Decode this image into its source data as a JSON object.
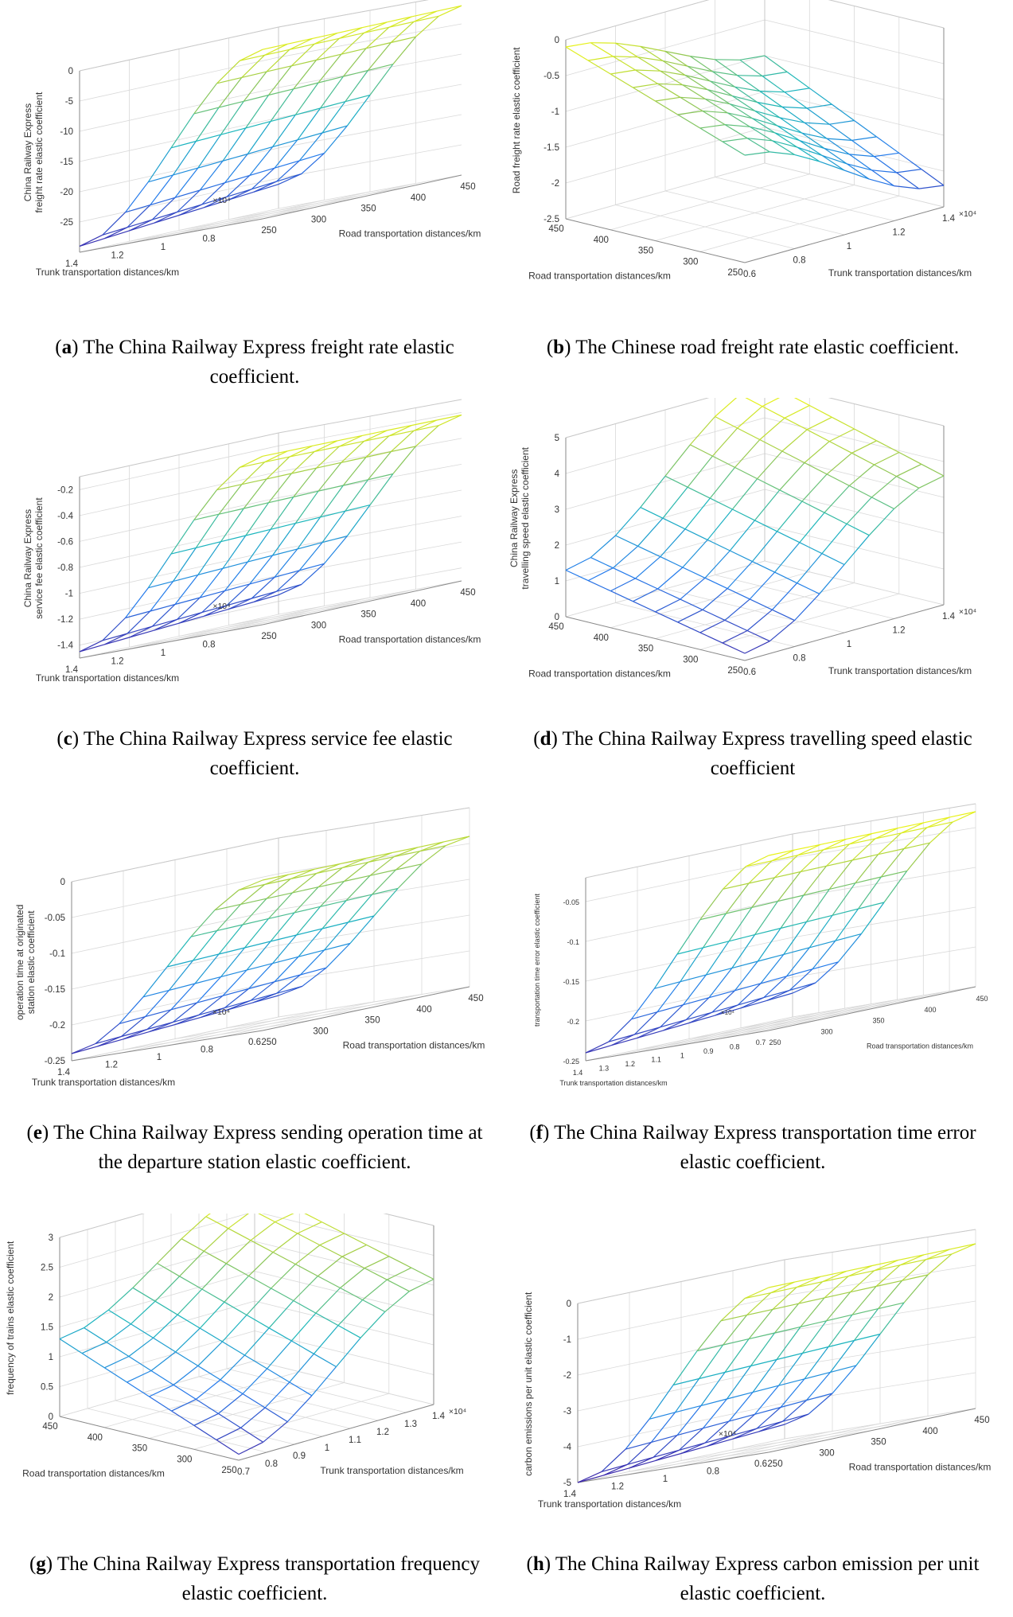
{
  "chart_data": [
    {
      "id": "a",
      "type": "surface",
      "zlabel": [
        "China Railway Express",
        "freight rate elastic coefficient"
      ],
      "xlabel": "Trunk transportation distances/km",
      "x_exponent": "×10⁴",
      "ylabel": "Road transportation distances/km",
      "xticks": [
        "0.8",
        "1",
        "1.2",
        "1.4"
      ],
      "yticks": [
        "250",
        "300",
        "350",
        "400",
        "450"
      ],
      "zticks": [
        "0",
        "-5",
        "-10",
        "-15",
        "-20",
        "-25"
      ],
      "xrange": [
        0.6,
        1.4
      ],
      "yrange": [
        250,
        450
      ],
      "zrange": [
        -30,
        0
      ],
      "z_corners": {
        "x_min_y_min": -2,
        "x_min_y_max": -2,
        "x_max_y_min": -29,
        "x_max_y_max": -26
      },
      "caption_letter": "a",
      "caption_text": "The China Railway Express freight rate elastic coefficient."
    },
    {
      "id": "b",
      "type": "surface",
      "zlabel": [
        "Road freight rate elastic coefficient"
      ],
      "xlabel": "Trunk transportation distances/km",
      "x_exponent": "×10⁴",
      "ylabel": "Road transportation distances/km",
      "xticks": [
        "0.6",
        "0.8",
        "1",
        "1.2",
        "1.4"
      ],
      "yticks": [
        "250",
        "300",
        "350",
        "400",
        "450"
      ],
      "zticks": [
        "0",
        "-0.5",
        "-1",
        "-1.5",
        "-2",
        "-2.5"
      ],
      "xrange": [
        0.6,
        1.4
      ],
      "yrange": [
        250,
        450
      ],
      "zrange": [
        -2.5,
        0
      ],
      "z_corners": {
        "x_min_y_min": -1.0,
        "x_min_y_max": -0.1,
        "x_max_y_min": -2.2,
        "x_max_y_max": -1.0
      },
      "caption_letter": "b",
      "caption_text": "The Chinese road freight rate elastic coefficient."
    },
    {
      "id": "c",
      "type": "surface",
      "zlabel": [
        "China Railway Express",
        "service fee elastic coefficient"
      ],
      "xlabel": "Trunk transportation distances/km",
      "x_exponent": "×10⁴",
      "ylabel": "Road transportation distances/km",
      "xticks": [
        "0.8",
        "1",
        "1.2",
        "1.4"
      ],
      "yticks": [
        "250",
        "300",
        "350",
        "400",
        "450"
      ],
      "zticks": [
        "-0.2",
        "-0.4",
        "-0.6",
        "-0.8",
        "-1",
        "-1.2",
        "-1.4"
      ],
      "xrange": [
        0.6,
        1.4
      ],
      "yrange": [
        250,
        450
      ],
      "zrange": [
        -1.5,
        -0.1
      ],
      "z_corners": {
        "x_min_y_min": -0.2,
        "x_min_y_max": -0.22,
        "x_max_y_min": -1.45,
        "x_max_y_max": -1.35
      },
      "caption_letter": "c",
      "caption_text": "The China Railway Express service fee elastic coefficient."
    },
    {
      "id": "d",
      "type": "surface",
      "zlabel": [
        "China Railway Express",
        "travelling speed elastic coefficient"
      ],
      "xlabel": "Trunk transportation distances/km",
      "x_exponent": "×10⁴",
      "ylabel": "Road transportation distances/km",
      "xticks": [
        "0.6",
        "0.8",
        "1",
        "1.2",
        "1.4"
      ],
      "yticks": [
        "250",
        "300",
        "350",
        "400",
        "450"
      ],
      "zticks": [
        "0",
        "1",
        "2",
        "3",
        "4",
        "5"
      ],
      "xrange": [
        0.6,
        1.4
      ],
      "yrange": [
        250,
        450
      ],
      "zrange": [
        0,
        5
      ],
      "z_corners": {
        "x_min_y_min": 0.2,
        "x_min_y_max": 1.3,
        "x_max_y_min": 3.6,
        "x_max_y_max": 5.0
      },
      "caption_letter": "d",
      "caption_text": "The China Railway Express travelling speed elastic coefficient"
    },
    {
      "id": "e",
      "type": "surface",
      "zlabel": [
        "operation time at originated",
        "station elastic coefficient"
      ],
      "xlabel": "Trunk transportation distances/km",
      "x_exponent": "×10⁴",
      "ylabel": "Road transportation distances/km",
      "xticks": [
        "0.6",
        "0.8",
        "1",
        "1.2",
        "1.4"
      ],
      "yticks": [
        "250",
        "300",
        "350",
        "400",
        "450"
      ],
      "zticks": [
        "0",
        "-0.05",
        "-0.1",
        "-0.15",
        "-0.2",
        "-0.25"
      ],
      "xrange": [
        0.6,
        1.4
      ],
      "yrange": [
        250,
        450
      ],
      "zrange": [
        -0.25,
        0
      ],
      "z_corners": {
        "x_min_y_min": -0.04,
        "x_min_y_max": -0.04,
        "x_max_y_min": -0.24,
        "x_max_y_max": -0.22
      },
      "caption_letter": "e",
      "caption_text": "The China Railway Express sending operation time at the departure station elastic coefficient."
    },
    {
      "id": "f",
      "type": "surface",
      "zlabel": [
        "transportation time error elastic coefficient"
      ],
      "xlabel": "Trunk transportation distances/km",
      "x_exponent": "×10⁴",
      "ylabel": "Road transportation distances/km",
      "xticks": [
        "0.7",
        "0.8",
        "0.9",
        "1",
        "1.1",
        "1.2",
        "1.3",
        "1.4"
      ],
      "yticks": [
        "250",
        "300",
        "350",
        "400",
        "450"
      ],
      "zticks": [
        "-0.05",
        "-0.1",
        "-0.15",
        "-0.2",
        "-0.25"
      ],
      "xrange": [
        0.7,
        1.4
      ],
      "yrange": [
        250,
        450
      ],
      "zrange": [
        -0.25,
        -0.02
      ],
      "z_corners": {
        "x_min_y_min": -0.03,
        "x_min_y_max": -0.03,
        "x_max_y_min": -0.24,
        "x_max_y_max": -0.22
      },
      "caption_letter": "f",
      "caption_text": "The China Railway Express transportation time error elastic coefficient."
    },
    {
      "id": "g",
      "type": "surface",
      "zlabel": [
        "frequency of trains elastic coefficient"
      ],
      "xlabel": "Trunk transportation distances/km",
      "x_exponent": "×10⁴",
      "ylabel": "Road transportation distances/km",
      "xticks": [
        "0.7",
        "0.8",
        "0.9",
        "1",
        "1.1",
        "1.2",
        "1.3",
        "1.4"
      ],
      "yticks": [
        "250",
        "300",
        "350",
        "400",
        "450"
      ],
      "zticks": [
        "0",
        "0.5",
        "1",
        "1.5",
        "2",
        "2.5",
        "3"
      ],
      "xrange": [
        0.7,
        1.4
      ],
      "yrange": [
        250,
        450
      ],
      "zrange": [
        0,
        3
      ],
      "z_corners": {
        "x_min_y_min": 0.1,
        "x_min_y_max": 1.3,
        "x_max_y_min": 2.1,
        "x_max_y_max": 2.9
      },
      "caption_letter": "g",
      "caption_text": "The China Railway Express transportation frequency elastic coefficient."
    },
    {
      "id": "h",
      "type": "surface",
      "zlabel": [
        "carbon emissions per unit elastic coefficient"
      ],
      "xlabel": "Trunk transportation distances/km",
      "x_exponent": "×10⁴",
      "ylabel": "Road transportation distances/km",
      "xticks": [
        "0.6",
        "0.8",
        "1",
        "1.2",
        "1.4"
      ],
      "yticks": [
        "250",
        "300",
        "350",
        "400",
        "450"
      ],
      "zticks": [
        "0",
        "-1",
        "-2",
        "-3",
        "-4",
        "-5"
      ],
      "xrange": [
        0.6,
        1.4
      ],
      "yrange": [
        250,
        450
      ],
      "zrange": [
        -5,
        0
      ],
      "z_corners": {
        "x_min_y_min": -0.4,
        "x_min_y_max": -0.4,
        "x_max_y_min": -5.0,
        "x_max_y_max": -4.6
      },
      "caption_letter": "h",
      "caption_text": "The China Railway Express carbon emission per unit elastic coefficient."
    }
  ]
}
